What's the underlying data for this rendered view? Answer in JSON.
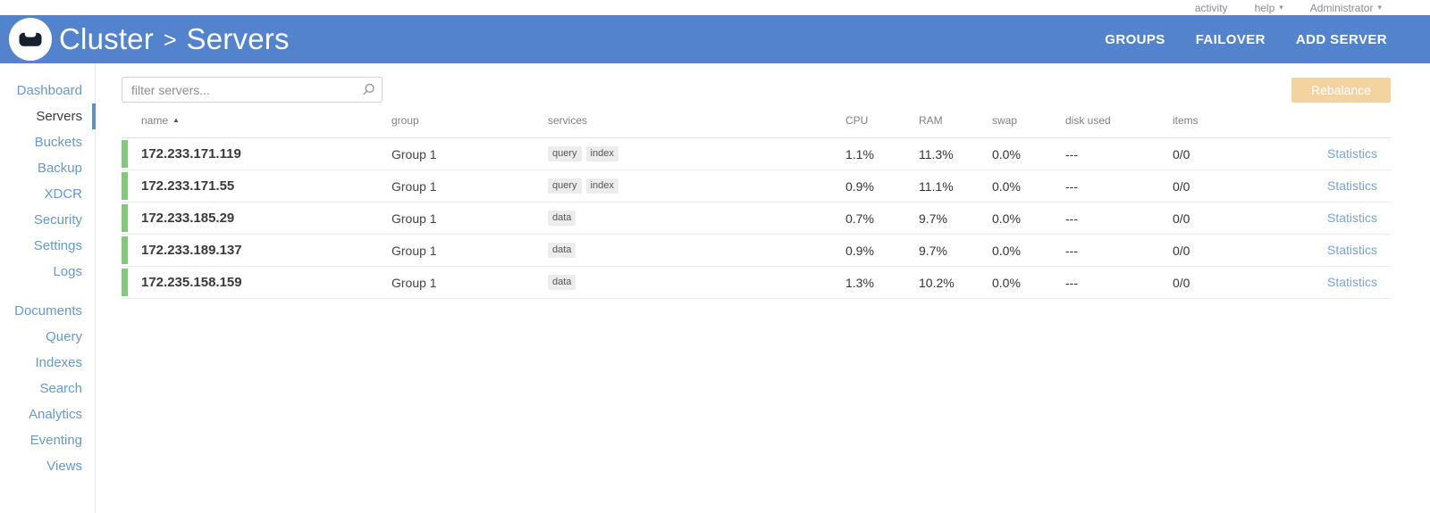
{
  "topbar": {
    "activity_label": "activity",
    "help_label": "help",
    "user_label": "Administrator"
  },
  "header": {
    "breadcrumb": {
      "parent": "Cluster",
      "separator": ">",
      "current": "Servers"
    },
    "actions": [
      {
        "label": "GROUPS"
      },
      {
        "label": "FAILOVER"
      },
      {
        "label": "ADD SERVER"
      }
    ]
  },
  "sidebar": {
    "groups": [
      {
        "items": [
          {
            "label": "Dashboard",
            "active": false
          },
          {
            "label": "Servers",
            "active": true
          },
          {
            "label": "Buckets",
            "active": false
          },
          {
            "label": "Backup",
            "active": false
          },
          {
            "label": "XDCR",
            "active": false
          },
          {
            "label": "Security",
            "active": false
          },
          {
            "label": "Settings",
            "active": false
          },
          {
            "label": "Logs",
            "active": false
          }
        ]
      },
      {
        "items": [
          {
            "label": "Documents",
            "active": false
          },
          {
            "label": "Query",
            "active": false
          },
          {
            "label": "Indexes",
            "active": false
          },
          {
            "label": "Search",
            "active": false
          },
          {
            "label": "Analytics",
            "active": false
          },
          {
            "label": "Eventing",
            "active": false
          },
          {
            "label": "Views",
            "active": false
          }
        ]
      }
    ]
  },
  "toolbar": {
    "filter_placeholder": "filter servers...",
    "rebalance_label": "Rebalance"
  },
  "table": {
    "columns": [
      "name",
      "group",
      "services",
      "CPU",
      "RAM",
      "swap",
      "disk used",
      "items",
      ""
    ],
    "sort": {
      "column": "name",
      "direction": "asc"
    },
    "rows": [
      {
        "name": "172.233.171.119",
        "group": "Group 1",
        "services": [
          "query",
          "index"
        ],
        "cpu": "1.1%",
        "ram": "11.3%",
        "swap": "0.0%",
        "disk_used": "---",
        "items": "0/0",
        "statistics_label": "Statistics"
      },
      {
        "name": "172.233.171.55",
        "group": "Group 1",
        "services": [
          "query",
          "index"
        ],
        "cpu": "0.9%",
        "ram": "11.1%",
        "swap": "0.0%",
        "disk_used": "---",
        "items": "0/0",
        "statistics_label": "Statistics"
      },
      {
        "name": "172.233.185.29",
        "group": "Group 1",
        "services": [
          "data"
        ],
        "cpu": "0.7%",
        "ram": "9.7%",
        "swap": "0.0%",
        "disk_used": "---",
        "items": "0/0",
        "statistics_label": "Statistics"
      },
      {
        "name": "172.233.189.137",
        "group": "Group 1",
        "services": [
          "data"
        ],
        "cpu": "0.9%",
        "ram": "9.7%",
        "swap": "0.0%",
        "disk_used": "---",
        "items": "0/0",
        "statistics_label": "Statistics"
      },
      {
        "name": "172.235.158.159",
        "group": "Group 1",
        "services": [
          "data"
        ],
        "cpu": "1.3%",
        "ram": "10.2%",
        "swap": "0.0%",
        "disk_used": "---",
        "items": "0/0",
        "statistics_label": "Statistics"
      }
    ]
  },
  "icons": {
    "sort_asc": "▲",
    "caret_down": "▾"
  },
  "colors": {
    "header_blue": "#5383cc",
    "sidebar_link_blue": "#6699cc",
    "health_green": "#85c77c",
    "rebalance_disabled_orange": "#f3d4a0",
    "statistics_link_blue": "#76a4d6"
  }
}
